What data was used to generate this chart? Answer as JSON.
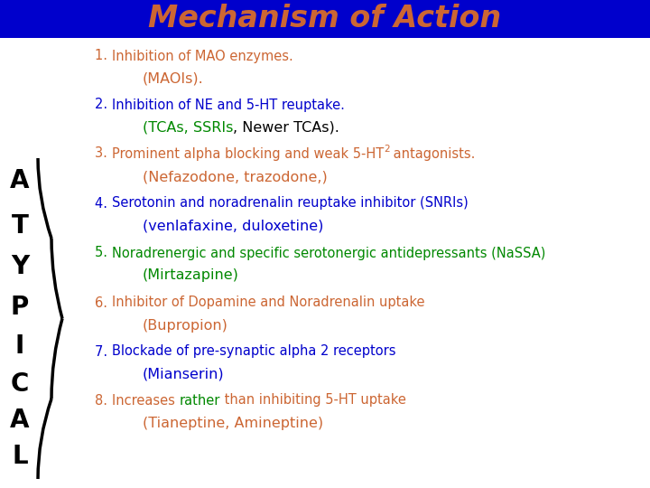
{
  "title": "Mechanism of Action",
  "title_color": "#CC6633",
  "title_bg": "#0000CC",
  "bg_color": "#FFFFFF",
  "figsize": [
    7.2,
    5.4
  ],
  "dpi": 100,
  "atypical_letters": [
    "A",
    "T",
    "Y",
    "P",
    "I",
    "C",
    "A",
    "L"
  ],
  "orange": "#CC6633",
  "blue": "#0000CC",
  "green": "#008800",
  "black": "#000000",
  "items": [
    {
      "num": "1. ",
      "num_color": "#CC6633",
      "line1_parts": [
        {
          "text": "Inhibition of MAO enzymes.",
          "color": "#CC6633"
        }
      ],
      "line2_parts": [
        {
          "text": "(MAOIs).",
          "color": "#CC6633"
        }
      ],
      "line2_bold": false
    },
    {
      "num": "2. ",
      "num_color": "#0000CC",
      "line1_parts": [
        {
          "text": "Inhibition of NE and 5-HT reuptake.",
          "color": "#0000CC"
        }
      ],
      "line2_parts": [
        {
          "text": "(TCAs, ",
          "color": "#008800"
        },
        {
          "text": "SSRIs",
          "color": "#008800"
        },
        {
          "text": ", Newer TCAs).",
          "color": "#000000"
        }
      ],
      "line2_bold": false
    },
    {
      "num": "3. ",
      "num_color": "#CC6633",
      "line1_parts": [
        {
          "text": "Prominent alpha blocking and weak 5-HT",
          "color": "#CC6633"
        },
        {
          "text": "2",
          "color": "#CC6633",
          "sup": true
        },
        {
          "text": " antagonists.",
          "color": "#CC6633"
        }
      ],
      "line2_parts": [
        {
          "text": "(Nefazodone, trazodone,)",
          "color": "#CC6633"
        }
      ],
      "line2_bold": false
    },
    {
      "num": "4. ",
      "num_color": "#0000CC",
      "line1_parts": [
        {
          "text": "Serotonin and noradrenalin reuptake inhibitor (SNRIs)",
          "color": "#0000CC"
        }
      ],
      "line2_parts": [
        {
          "text": "(venlafaxine, duloxetine)",
          "color": "#0000CC"
        }
      ],
      "line2_bold": false
    },
    {
      "num": "5. ",
      "num_color": "#008800",
      "line1_parts": [
        {
          "text": "Noradrenergic and specific serotonergic antidepressants (NaSSA)",
          "color": "#008800"
        }
      ],
      "line2_parts": [
        {
          "text": "(Mirtazapine)",
          "color": "#008800"
        }
      ],
      "line2_bold": false
    },
    {
      "num": "6. ",
      "num_color": "#CC6633",
      "line1_parts": [
        {
          "text": "Inhibitor of Dopamine and Noradrenalin uptake",
          "color": "#CC6633"
        }
      ],
      "line2_parts": [
        {
          "text": "(Bupropion)",
          "color": "#CC6633"
        }
      ],
      "line2_bold": false
    },
    {
      "num": "7. ",
      "num_color": "#0000CC",
      "line1_parts": [
        {
          "text": "Blockade of pre-synaptic alpha 2 receptors",
          "color": "#0000CC"
        }
      ],
      "line2_parts": [
        {
          "text": "(Mianserin)",
          "color": "#0000CC"
        }
      ],
      "line2_bold": false
    },
    {
      "num": "8. ",
      "num_color": "#CC6633",
      "line1_parts": [
        {
          "text": "Increases ",
          "color": "#CC6633"
        },
        {
          "text": "rather",
          "color": "#008800"
        },
        {
          "text": " than inhibiting 5-HT uptake",
          "color": "#CC6633"
        }
      ],
      "line2_parts": [
        {
          "text": "(Tianeptine, Amineptine)",
          "color": "#CC6633"
        }
      ],
      "line2_bold": false
    }
  ]
}
